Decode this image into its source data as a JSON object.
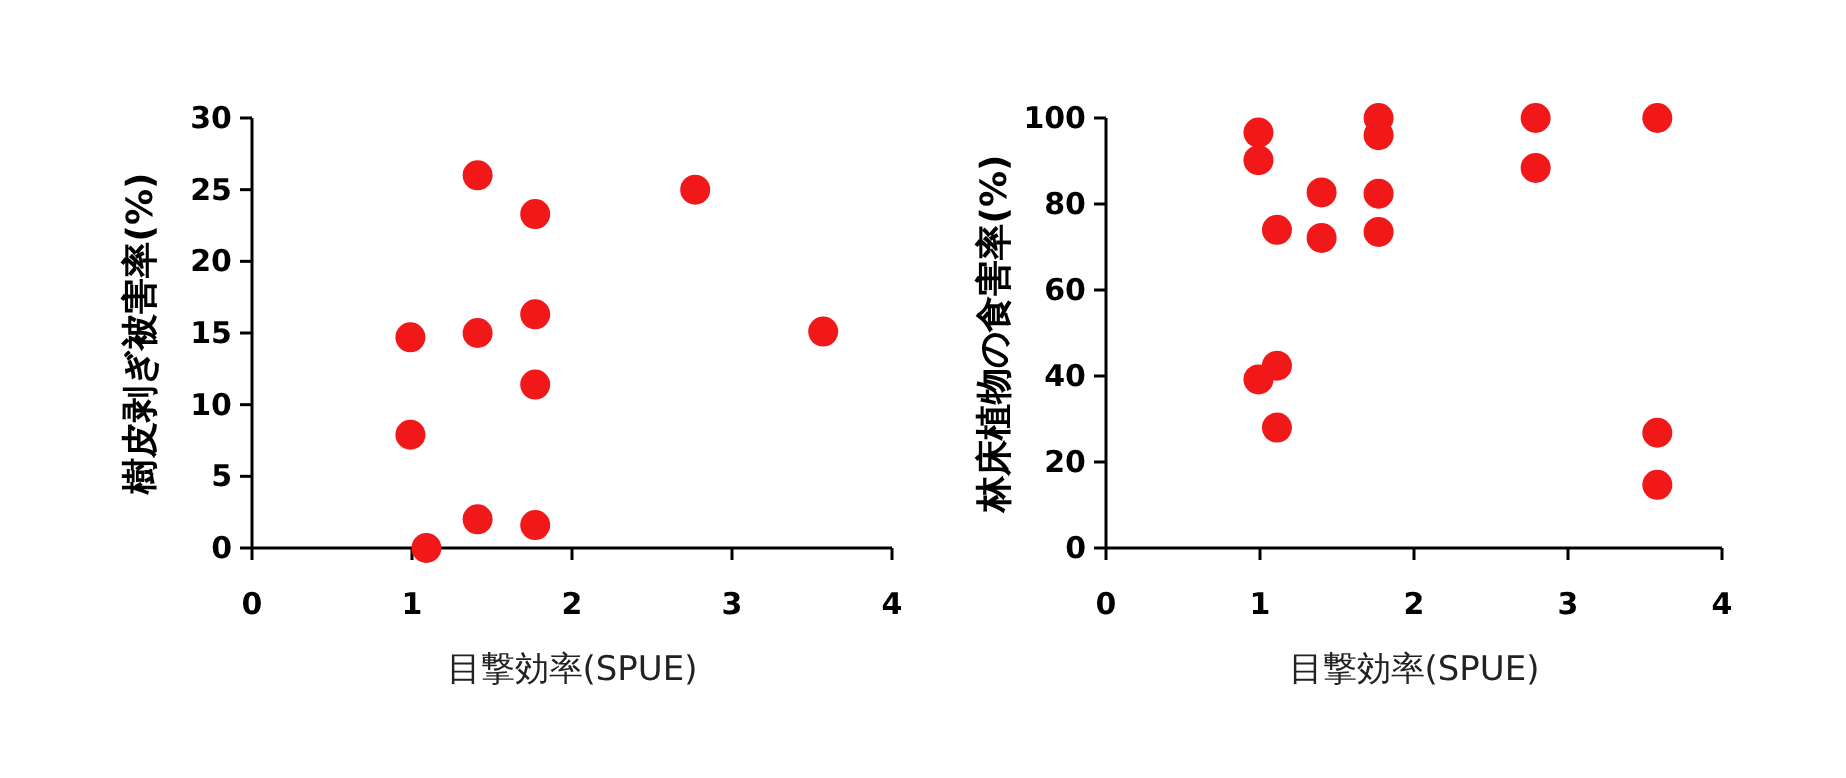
{
  "chart_data": [
    {
      "type": "scatter",
      "xlabel": "目撃効率(SPUE)",
      "ylabel": "樹皮剥ぎ被害率(%)",
      "xlim": [
        0,
        4
      ],
      "xticks": [
        0,
        1,
        2,
        3,
        4
      ],
      "ylim": [
        0,
        30
      ],
      "yticks": [
        0,
        5,
        10,
        15,
        20,
        25,
        30
      ],
      "grid": false,
      "marker": "circle",
      "series": [
        {
          "color": "#f01818",
          "x": [
            1.41,
            1.77,
            2.77,
            1.77,
            3.57,
            0.99,
            1.41,
            1.77,
            0.99,
            1.41,
            1.77,
            1.09
          ],
          "values": [
            26,
            23.3,
            25,
            16.3,
            15.1,
            14.7,
            15,
            11.4,
            7.9,
            2,
            1.6,
            0
          ]
        }
      ]
    },
    {
      "type": "scatter",
      "xlabel": "目撃効率(SPUE)",
      "ylabel": "林床植物の食害率(%)",
      "xlim": [
        0,
        4
      ],
      "xticks": [
        0,
        1,
        2,
        3,
        4
      ],
      "ylim": [
        0,
        100
      ],
      "yticks": [
        0,
        20,
        40,
        60,
        80,
        100
      ],
      "grid": false,
      "marker": "circle",
      "series": [
        {
          "color": "#f01818",
          "x": [
            0.99,
            0.99,
            1.11,
            1.4,
            1.4,
            1.77,
            1.77,
            1.77,
            1.77,
            2.79,
            2.79,
            3.58,
            3.58,
            3.58,
            0.99,
            1.11,
            1.11
          ],
          "values": [
            96.6,
            90.2,
            74,
            82.7,
            72.1,
            100,
            96,
            82.4,
            73.5,
            100,
            88.4,
            100,
            26.8,
            14.7,
            39.2,
            42.4,
            28
          ]
        }
      ]
    }
  ]
}
